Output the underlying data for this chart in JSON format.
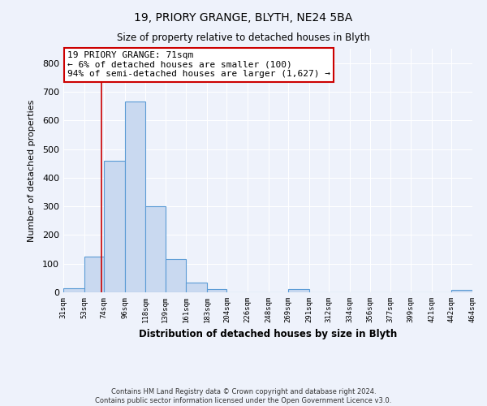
{
  "title": "19, PRIORY GRANGE, BLYTH, NE24 5BA",
  "subtitle": "Size of property relative to detached houses in Blyth",
  "xlabel": "Distribution of detached houses by size in Blyth",
  "ylabel": "Number of detached properties",
  "bar_edges": [
    31,
    53,
    74,
    96,
    118,
    139,
    161,
    183,
    204,
    226,
    248,
    269,
    291,
    312,
    334,
    356,
    377,
    399,
    421,
    442,
    464
  ],
  "bar_heights": [
    15,
    125,
    460,
    665,
    300,
    115,
    35,
    12,
    0,
    0,
    0,
    10,
    0,
    0,
    0,
    0,
    0,
    0,
    0,
    8
  ],
  "bar_color": "#c9d9f0",
  "bar_edge_color": "#5b9bd5",
  "property_line_x": 71,
  "property_line_color": "#cc0000",
  "ylim": [
    0,
    850
  ],
  "annotation_title": "19 PRIORY GRANGE: 71sqm",
  "annotation_line1": "← 6% of detached houses are smaller (100)",
  "annotation_line2": "94% of semi-detached houses are larger (1,627) →",
  "footer_line1": "Contains HM Land Registry data © Crown copyright and database right 2024.",
  "footer_line2": "Contains public sector information licensed under the Open Government Licence v3.0.",
  "tick_labels": [
    "31sqm",
    "53sqm",
    "74sqm",
    "96sqm",
    "118sqm",
    "139sqm",
    "161sqm",
    "183sqm",
    "204sqm",
    "226sqm",
    "248sqm",
    "269sqm",
    "291sqm",
    "312sqm",
    "334sqm",
    "356sqm",
    "377sqm",
    "399sqm",
    "421sqm",
    "442sqm",
    "464sqm"
  ],
  "yticks": [
    0,
    100,
    200,
    300,
    400,
    500,
    600,
    700,
    800
  ],
  "background_color": "#eef2fb",
  "grid_color": "#ffffff"
}
